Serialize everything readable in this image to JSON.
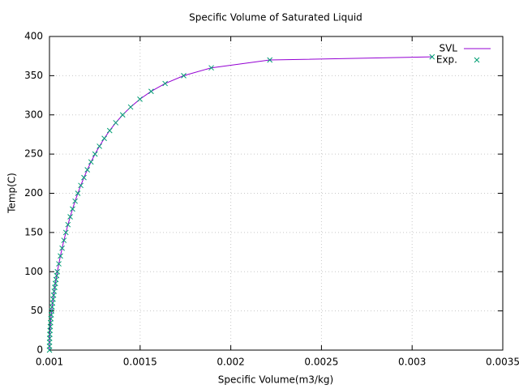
{
  "chart_data": {
    "type": "line",
    "title": "Specific Volume of Saturated Liquid",
    "x_label": "Specific Volume(m3/kg)",
    "y_label": "Temp(C)",
    "x": [
      0.0010002,
      0.0010001,
      0.0010003,
      0.0010009,
      0.0010018,
      0.001003,
      0.0010044,
      0.001006,
      0.0010079,
      0.0010099,
      0.0010121,
      0.0010146,
      0.0010171,
      0.0010199,
      0.0010228,
      0.0010258,
      0.0010291,
      0.0010325,
      0.001036,
      0.0010397,
      0.0010435,
      0.0010516,
      0.0010603,
      0.0010697,
      0.0010797,
      0.0010905,
      0.001102,
      0.0011143,
      0.0011274,
      0.0011414,
      0.0011565,
      0.0011726,
      0.00119,
      0.0012088,
      0.0012291,
      0.0012512,
      0.0012755,
      0.0013023,
      0.0013321,
      0.0013656,
      0.0014036,
      0.0014475,
      0.0014988,
      0.0015607,
      0.0016379,
      0.0017403,
      0.0018925,
      0.0022152,
      0.00311
    ],
    "series": [
      {
        "name": "SVL",
        "color": "#9400d3",
        "style": "line",
        "values": [
          0,
          5,
          10,
          15,
          20,
          25,
          30,
          35,
          40,
          45,
          50,
          55,
          60,
          65,
          70,
          75,
          80,
          85,
          90,
          95,
          100,
          110,
          120,
          130,
          140,
          150,
          160,
          170,
          180,
          190,
          200,
          210,
          220,
          230,
          240,
          250,
          260,
          270,
          280,
          290,
          300,
          310,
          320,
          330,
          340,
          350,
          360,
          370,
          374
        ]
      },
      {
        "name": "Exp.",
        "color": "#009e73",
        "style": "points",
        "values": [
          0,
          5,
          10,
          15,
          20,
          25,
          30,
          35,
          40,
          45,
          50,
          55,
          60,
          65,
          70,
          75,
          80,
          85,
          90,
          95,
          100,
          110,
          120,
          130,
          140,
          150,
          160,
          170,
          180,
          190,
          200,
          210,
          220,
          230,
          240,
          250,
          260,
          270,
          280,
          290,
          300,
          310,
          320,
          330,
          340,
          350,
          360,
          370,
          374
        ]
      }
    ],
    "xlim": [
      0.001,
      0.0035
    ],
    "xticks": [
      0.001,
      0.0015,
      0.002,
      0.0025,
      0.003,
      0.0035
    ],
    "ylim": [
      0,
      400
    ],
    "yticks": [
      0,
      50,
      100,
      150,
      200,
      250,
      300,
      350,
      400
    ],
    "grid": true,
    "legend": "top-right"
  }
}
